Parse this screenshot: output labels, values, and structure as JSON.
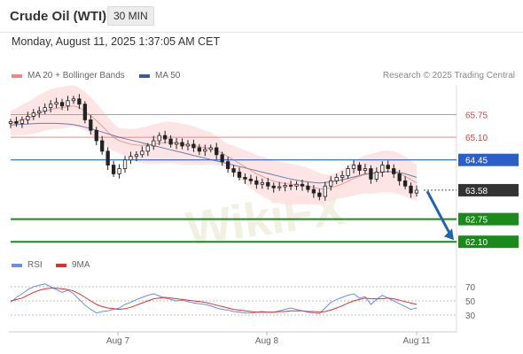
{
  "header": {
    "title": "Crude Oil (WTI)",
    "timeframe": "30 MIN"
  },
  "datetime": "Monday, August 11, 2025 1:37:05 AM CET",
  "legend": {
    "ma20_label": "MA 20 + Bollinger Bands",
    "ma50_label": "MA 50",
    "copyright": "Research © 2025 Trading Central"
  },
  "rsi_legend": {
    "rsi_label": "RSI",
    "ma_label": "9MA"
  },
  "colors": {
    "ma20": "#e06767",
    "ma50": "#3c5a9a",
    "bollinger_fill": "#fde0e0",
    "resistance": "#e28b8b",
    "pivot": "#2b5fc7",
    "support": "#1a8a1a",
    "current_price": "#333333",
    "arrow": "#2563a8",
    "rsi": "#6b8ce8",
    "rsi_ma": "#e03030"
  },
  "chart_data": [
    {
      "type": "line",
      "title": "Crude Oil (WTI)",
      "timeframe": "30 MIN",
      "x_ticks": [
        "Aug 7",
        "Aug 8",
        "Aug 11"
      ],
      "ylim": [
        61.8,
        66.5
      ],
      "current_price": 63.58,
      "levels": [
        {
          "value": 65.75,
          "label": "65.75",
          "kind": "resistance"
        },
        {
          "value": 65.1,
          "label": "65.10",
          "kind": "resistance"
        },
        {
          "value": 64.45,
          "label": "64.45",
          "kind": "pivot"
        },
        {
          "value": 63.58,
          "label": "63.58",
          "kind": "current"
        },
        {
          "value": 62.75,
          "label": "62.75",
          "kind": "support"
        },
        {
          "value": 62.1,
          "label": "62.10",
          "kind": "support"
        }
      ],
      "forecast_arrow": {
        "from": 63.55,
        "to": 62.15
      },
      "series": [
        {
          "name": "Price",
          "values": [
            65.55,
            65.5,
            65.6,
            65.7,
            65.8,
            65.85,
            65.95,
            66.05,
            66.1,
            66.0,
            66.15,
            66.2,
            66.05,
            65.6,
            65.3,
            65.0,
            64.7,
            64.3,
            64.05,
            64.2,
            64.45,
            64.55,
            64.6,
            64.7,
            64.85,
            65.0,
            65.15,
            65.05,
            64.9,
            64.95,
            64.85,
            64.9,
            64.8,
            64.7,
            64.75,
            64.8,
            64.6,
            64.4,
            64.2,
            64.1,
            63.95,
            63.9,
            63.85,
            63.75,
            63.8,
            63.7,
            63.65,
            63.68,
            63.72,
            63.7,
            63.75,
            63.7,
            63.6,
            63.5,
            63.4,
            63.7,
            63.85,
            63.95,
            64.0,
            64.2,
            64.3,
            64.15,
            64.2,
            63.9,
            64.1,
            64.3,
            64.2,
            64.05,
            63.85,
            63.7,
            63.5,
            63.58
          ]
        },
        {
          "name": "MA 20",
          "values": [
            65.5,
            65.55,
            65.6,
            65.65,
            65.7,
            65.78,
            65.85,
            65.9,
            65.93,
            65.95,
            65.98,
            66.0,
            65.95,
            65.85,
            65.72,
            65.58,
            65.42,
            65.25,
            65.1,
            65.0,
            64.95,
            64.9,
            64.88,
            64.87,
            64.88,
            64.9,
            64.93,
            64.95,
            64.95,
            64.93,
            64.9,
            64.88,
            64.86,
            64.83,
            64.8,
            64.78,
            64.72,
            64.64,
            64.55,
            64.45,
            64.35,
            64.25,
            64.15,
            64.05,
            63.98,
            63.9,
            63.84,
            63.8,
            63.77,
            63.75,
            63.74,
            63.72,
            63.7,
            63.66,
            63.62,
            63.62,
            63.65,
            63.7,
            63.76,
            63.84,
            63.92,
            63.98,
            64.04,
            64.05,
            64.08,
            64.12,
            64.12,
            64.1,
            64.05,
            63.98,
            63.88,
            63.8
          ]
        },
        {
          "name": "MA 50",
          "values": [
            65.45,
            65.46,
            65.47,
            65.48,
            65.49,
            65.5,
            65.5,
            65.5,
            65.5,
            65.49,
            65.48,
            65.46,
            65.43,
            65.39,
            65.35,
            65.3,
            65.25,
            65.2,
            65.15,
            65.1,
            65.06,
            65.02,
            64.98,
            64.94,
            64.9,
            64.86,
            64.82,
            64.78,
            64.74,
            64.7,
            64.66,
            64.62,
            64.58,
            64.54,
            64.5,
            64.46,
            64.42,
            64.38,
            64.34,
            64.3,
            64.26,
            64.22,
            64.18,
            64.14,
            64.1,
            64.06,
            64.02,
            63.98,
            63.94,
            63.9,
            63.87,
            63.84,
            63.82,
            63.8,
            63.79,
            63.8,
            63.82,
            63.85,
            63.88,
            63.92,
            63.96,
            64.0,
            64.04,
            64.06,
            64.08,
            64.1,
            64.11,
            64.11,
            64.09,
            64.05,
            64.0,
            63.95
          ]
        }
      ]
    },
    {
      "type": "line",
      "title": "RSI",
      "y_ticks": [
        70,
        50,
        30
      ],
      "ylim": [
        20,
        80
      ],
      "series": [
        {
          "name": "RSI",
          "values": [
            48,
            55,
            60,
            66,
            70,
            72,
            74,
            70,
            66,
            62,
            65,
            60,
            52,
            44,
            38,
            33,
            35,
            36,
            38,
            40,
            45,
            48,
            52,
            55,
            58,
            60,
            57,
            54,
            52,
            50,
            51,
            49,
            47,
            46,
            45,
            43,
            40,
            38,
            37,
            35,
            34,
            33,
            33,
            34,
            35,
            34,
            34,
            36,
            38,
            40,
            38,
            36,
            34,
            33,
            32,
            40,
            48,
            52,
            55,
            58,
            60,
            54,
            56,
            45,
            52,
            58,
            54,
            50,
            46,
            42,
            38,
            40
          ]
        },
        {
          "name": "9MA",
          "values": [
            50,
            52,
            54,
            58,
            62,
            65,
            67,
            68,
            68,
            67,
            66,
            64,
            60,
            55,
            50,
            45,
            42,
            40,
            39,
            38,
            39,
            41,
            44,
            47,
            50,
            53,
            54,
            55,
            54,
            53,
            52,
            51,
            50,
            49,
            48,
            46,
            44,
            42,
            40,
            38,
            37,
            36,
            35,
            34,
            34,
            34,
            34,
            35,
            35,
            36,
            36,
            36,
            35,
            35,
            34,
            35,
            37,
            40,
            43,
            47,
            50,
            52,
            54,
            53,
            53,
            53,
            54,
            53,
            51,
            49,
            47,
            45
          ]
        }
      ]
    }
  ]
}
